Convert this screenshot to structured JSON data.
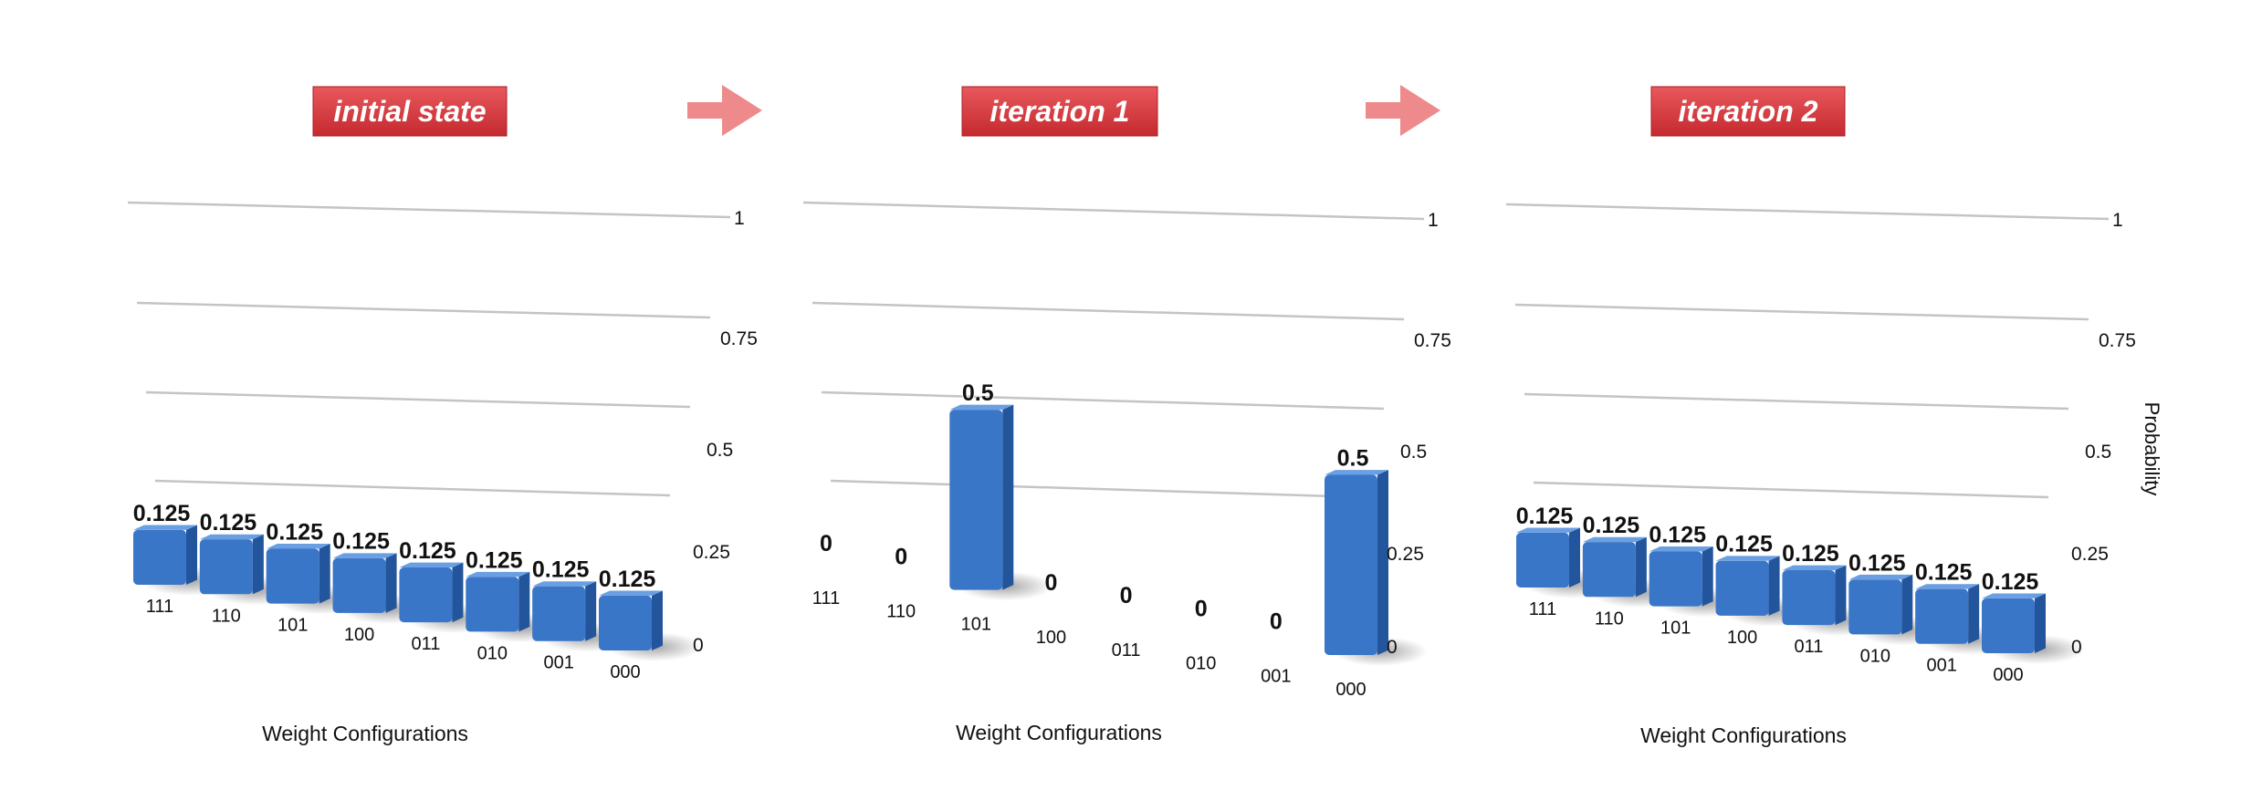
{
  "banners": [
    "initial state",
    "iteration 1",
    "iteration 2"
  ],
  "colors": {
    "banner": "#d8383e",
    "arrow": "#ee8a8c",
    "bar_front": "#3a76c8",
    "bar_side": "#23559c",
    "bar_top": "#6a9fe2",
    "grid": "#c4c4c4"
  },
  "chart_data": [
    {
      "type": "bar",
      "title": "",
      "xlabel": "Weight Configurations",
      "ylabel": "",
      "ylim": [
        0,
        1
      ],
      "yticks": [
        "0",
        "0.25",
        "0.5",
        "0.75",
        "1"
      ],
      "categories": [
        "111",
        "110",
        "101",
        "100",
        "011",
        "010",
        "001",
        "000"
      ],
      "values": [
        0.125,
        0.125,
        0.125,
        0.125,
        0.125,
        0.125,
        0.125,
        0.125
      ],
      "labels": [
        "0.125",
        "0.125",
        "0.125",
        "0.125",
        "0.125",
        "0.125",
        "0.125",
        "0.125"
      ]
    },
    {
      "type": "bar",
      "title": "",
      "xlabel": "Weight Configurations",
      "ylabel": "",
      "ylim": [
        0,
        1
      ],
      "yticks": [
        "0",
        "0.25",
        "0.5",
        "0.75",
        "1"
      ],
      "categories": [
        "111",
        "110",
        "101",
        "100",
        "011",
        "010",
        "001",
        "000"
      ],
      "values": [
        0,
        0,
        0.5,
        0,
        0,
        0,
        0,
        0.5
      ],
      "labels": [
        "0",
        "0",
        "0.5",
        "0",
        "0",
        "0",
        "0",
        "0.5"
      ]
    },
    {
      "type": "bar",
      "title": "",
      "xlabel": "Weight Configurations",
      "ylabel": "Probability",
      "ylim": [
        0,
        1
      ],
      "yticks": [
        "0",
        "0.25",
        "0.5",
        "0.75",
        "1"
      ],
      "categories": [
        "111",
        "110",
        "101",
        "100",
        "011",
        "010",
        "001",
        "000"
      ],
      "values": [
        0.125,
        0.125,
        0.125,
        0.125,
        0.125,
        0.125,
        0.125,
        0.125
      ],
      "labels": [
        "0.125",
        "0.125",
        "0.125",
        "0.125",
        "0.125",
        "0.125",
        "0.125",
        "0.125"
      ]
    }
  ]
}
